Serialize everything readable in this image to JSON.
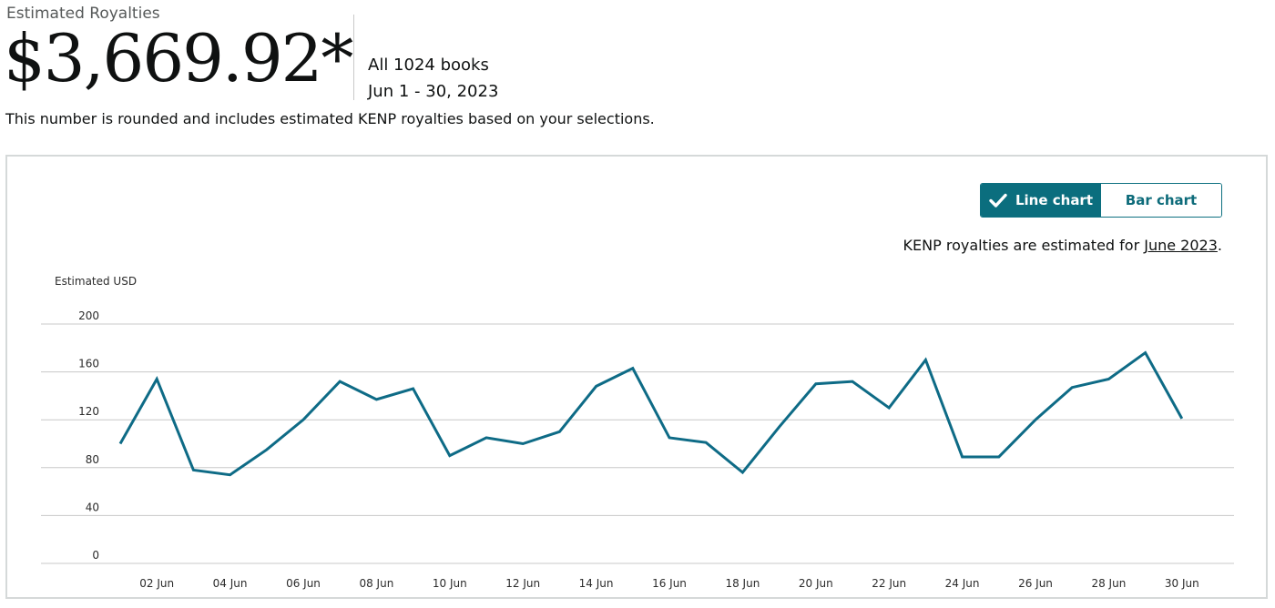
{
  "header": {
    "eyebrow": "Estimated Royalties",
    "amount": "$3,669.92*",
    "books": "All 1024 books",
    "date_range": "Jun 1 - 30, 2023",
    "note": "This number is rounded and includes estimated KENP royalties based on your selections."
  },
  "toggle": {
    "line_label": "Line chart",
    "bar_label": "Bar chart",
    "selected": "line"
  },
  "kenp": {
    "prefix": "KENP royalties are estimated for ",
    "link": "June 2023",
    "suffix": "."
  },
  "colors": {
    "line": "#0e6b86",
    "accent": "#0b6e7e",
    "grid": "#c8c8c8"
  },
  "chart_data": {
    "type": "line",
    "ylabel": "Estimated USD",
    "ylim": [
      0,
      200
    ],
    "yticks": [
      0,
      40,
      80,
      120,
      160,
      200
    ],
    "x": [
      "01 Jun",
      "02 Jun",
      "03 Jun",
      "04 Jun",
      "05 Jun",
      "06 Jun",
      "07 Jun",
      "08 Jun",
      "09 Jun",
      "10 Jun",
      "11 Jun",
      "12 Jun",
      "13 Jun",
      "14 Jun",
      "15 Jun",
      "16 Jun",
      "17 Jun",
      "18 Jun",
      "19 Jun",
      "20 Jun",
      "21 Jun",
      "22 Jun",
      "23 Jun",
      "24 Jun",
      "25 Jun",
      "26 Jun",
      "27 Jun",
      "28 Jun",
      "29 Jun",
      "30 Jun"
    ],
    "xtick_labels": [
      "02 Jun",
      "04 Jun",
      "06 Jun",
      "08 Jun",
      "10 Jun",
      "12 Jun",
      "14 Jun",
      "16 Jun",
      "18 Jun",
      "20 Jun",
      "22 Jun",
      "24 Jun",
      "26 Jun",
      "28 Jun",
      "30 Jun"
    ],
    "series": [
      {
        "values": [
          100,
          154,
          78,
          74,
          95,
          120,
          152,
          137,
          146,
          90,
          105,
          100,
          110,
          148,
          163,
          105,
          101,
          76,
          114,
          150,
          152,
          130,
          170,
          89,
          89,
          120,
          147,
          154,
          176,
          121
        ]
      }
    ],
    "grid": true,
    "legend": "none"
  }
}
